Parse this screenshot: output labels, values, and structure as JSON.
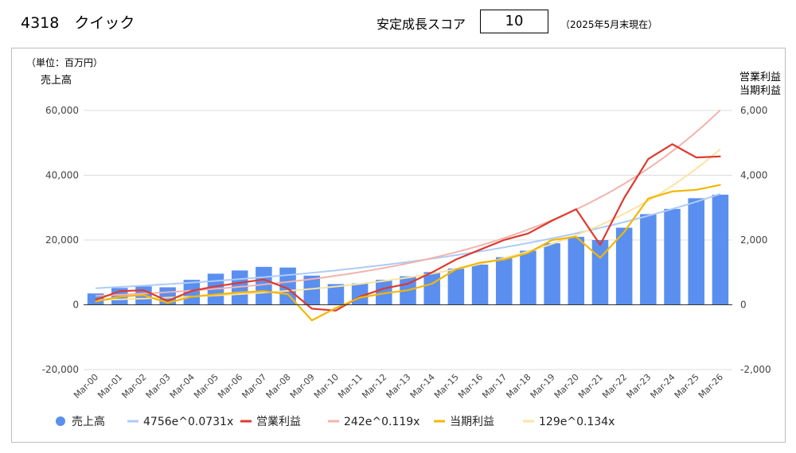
{
  "header": {
    "title": "4318　クイック",
    "score_label": "安定成長スコア",
    "score_value": "10",
    "score_note": "（2025年5月末現在）"
  },
  "chart_data": {
    "type": "bar",
    "unit_label": "（単位：百万円）",
    "ylabel_left": "売上高",
    "ylabel_right_lines": [
      "営業利益",
      "当期利益"
    ],
    "categories": [
      "Mar-00",
      "Mar-01",
      "Mar-02",
      "Mar-03",
      "Mar-04",
      "Mar-05",
      "Mar-06",
      "Mar-07",
      "Mar-08",
      "Mar-09",
      "Mar-10",
      "Mar-11",
      "Mar-12",
      "Mar-13",
      "Mar-14",
      "Mar-15",
      "Mar-16",
      "Mar-17",
      "Mar-18",
      "Mar-19",
      "Mar-20",
      "Mar-21",
      "Mar-22",
      "Mar-23",
      "Mar-24",
      "Mar-25",
      "Mar-26"
    ],
    "ylim_left": [
      -20000,
      60000
    ],
    "ylim_right": [
      -2000,
      6000
    ],
    "yticks_left": [
      "60,000",
      "40,000",
      "20,000",
      "0",
      "-20,000"
    ],
    "yticks_right": [
      "6,000",
      "4,000",
      "2,000",
      "0",
      "-2,000"
    ],
    "grid": true,
    "legend_position": "bottom",
    "series": [
      {
        "name": "売上高",
        "type": "bar",
        "axis": "left",
        "color": "#5a8ff0",
        "values": [
          3500,
          5200,
          5700,
          5400,
          7700,
          9600,
          10600,
          11700,
          11500,
          9000,
          6400,
          6600,
          7700,
          8800,
          10100,
          11200,
          12400,
          14700,
          16700,
          19000,
          21000,
          20000,
          23800,
          28000,
          29600,
          32900,
          34000
        ]
      },
      {
        "name": "4756e^0.0731x",
        "type": "trend",
        "axis": "left",
        "color": "#aecbf7",
        "a": 4756,
        "b": 0.0731
      },
      {
        "name": "営業利益",
        "type": "line",
        "axis": "right",
        "color": "#dc3b30",
        "values": [
          150,
          420,
          450,
          120,
          430,
          570,
          680,
          780,
          500,
          -120,
          -180,
          250,
          500,
          650,
          1000,
          1400,
          1700,
          2000,
          2200,
          2600,
          2950,
          1850,
          3300,
          4500,
          4960,
          4550,
          4580
        ]
      },
      {
        "name": "242e^0.119x",
        "type": "trend",
        "axis": "right",
        "color": "#f2b3ab",
        "a": 242,
        "b": 0.119
      },
      {
        "name": "当期利益",
        "type": "line",
        "axis": "right",
        "color": "#f2b705",
        "values": [
          100,
          250,
          300,
          60,
          250,
          320,
          380,
          420,
          330,
          -480,
          -100,
          220,
          350,
          450,
          650,
          1100,
          1300,
          1400,
          1600,
          2000,
          2100,
          1450,
          2250,
          3280,
          3500,
          3550,
          3700
        ]
      },
      {
        "name": "129e^0.134x",
        "type": "trend",
        "axis": "right",
        "color": "#fbe3a3",
        "a": 129,
        "b": 0.134
      }
    ]
  }
}
